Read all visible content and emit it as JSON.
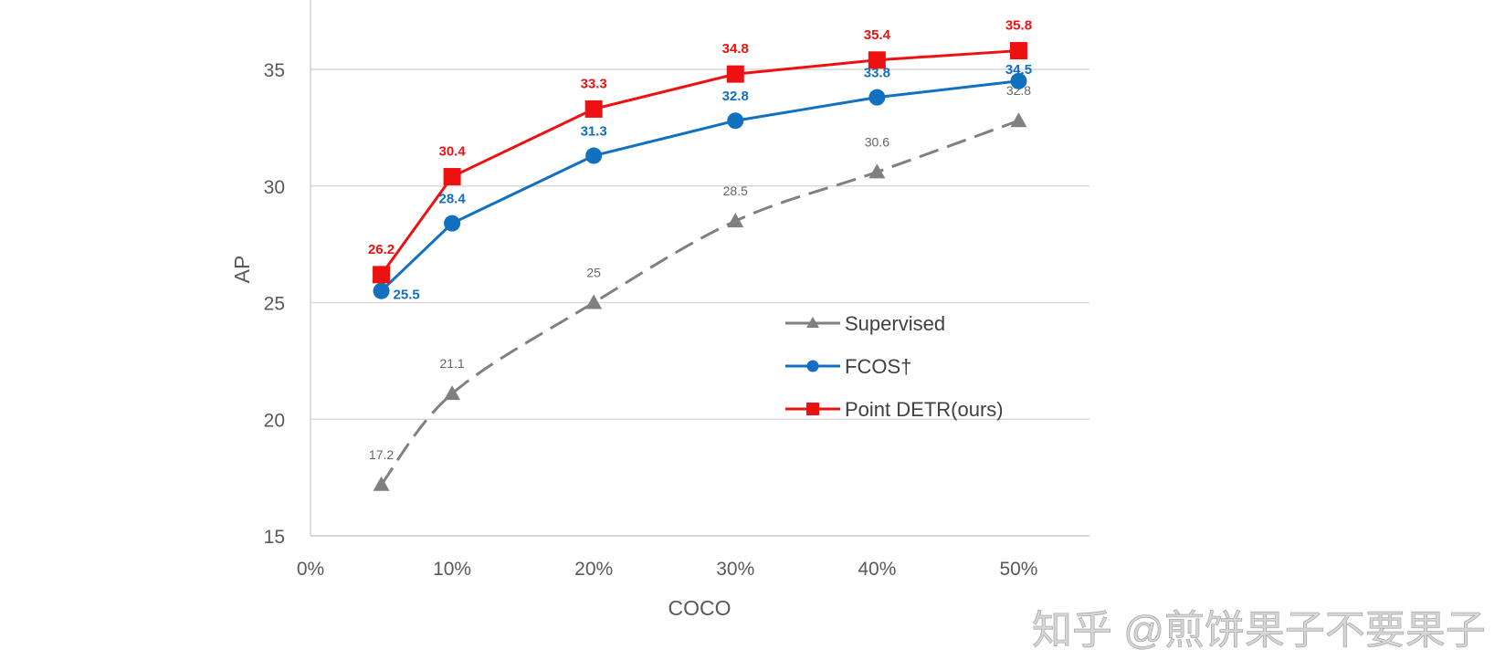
{
  "chart_data": {
    "type": "line",
    "xlabel": "COCO",
    "ylabel": "AP",
    "xlim": [
      0,
      55
    ],
    "ylim": [
      15,
      38
    ],
    "x_ticks": [
      0,
      10,
      20,
      30,
      40,
      50
    ],
    "x_tick_labels": [
      "0%",
      "10%",
      "20%",
      "30%",
      "40%",
      "50%"
    ],
    "y_ticks": [
      15,
      20,
      25,
      30,
      35
    ],
    "y_tick_labels": [
      "15",
      "20",
      "25",
      "30",
      "35"
    ],
    "grid": "horizontal",
    "legend_position": "center-right",
    "x": [
      5,
      10,
      20,
      30,
      40,
      50
    ],
    "series": [
      {
        "name": "Supervised",
        "values": [
          17.2,
          21.1,
          25,
          28.5,
          30.6,
          32.8
        ],
        "labels": [
          "17.2",
          "21.1",
          "25",
          "28.5",
          "30.6",
          "32.8"
        ],
        "color": "#808080",
        "marker": "triangle",
        "dash": true
      },
      {
        "name": "FCOS†",
        "values": [
          25.5,
          28.4,
          31.3,
          32.8,
          33.8,
          34.5
        ],
        "labels": [
          "25.5",
          "28.4",
          "31.3",
          "32.8",
          "33.8",
          "34.5"
        ],
        "color": "#1170c0",
        "marker": "circle",
        "dash": false
      },
      {
        "name": "Point DETR(ours)",
        "values": [
          26.2,
          30.4,
          33.3,
          34.8,
          35.4,
          35.8
        ],
        "labels": [
          "26.2",
          "30.4",
          "33.3",
          "34.8",
          "35.4",
          "35.8"
        ],
        "color": "#ee1111",
        "marker": "square",
        "dash": false
      }
    ]
  },
  "watermark": "知乎 @煎饼果子不要果子"
}
